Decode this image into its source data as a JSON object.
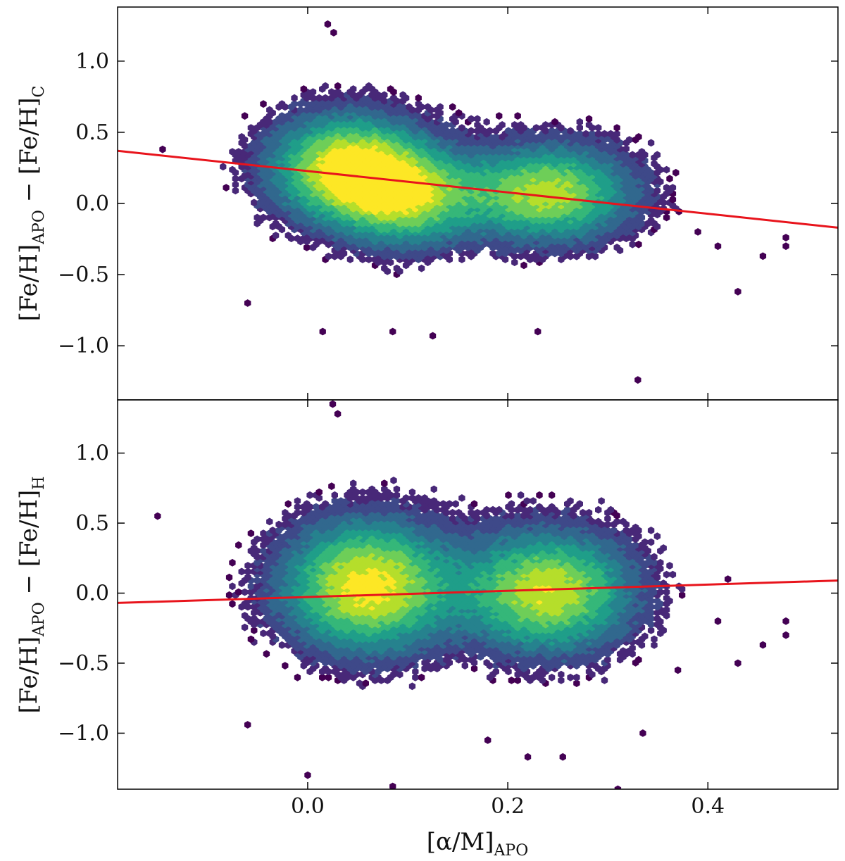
{
  "chart_data": [
    {
      "type": "hexbin",
      "panel": "top",
      "xlabel_main": "",
      "ylabel": {
        "main": "[Fe/H]",
        "sub1": "APO",
        "minus": " − [Fe/H]",
        "sub2": "C"
      },
      "xlim": [
        -0.19,
        0.53
      ],
      "ylim": [
        -1.38,
        1.38
      ],
      "xticks": [
        0.0,
        0.2,
        0.4
      ],
      "yticks": [
        1.0,
        0.5,
        0.0,
        -0.5,
        -1.0
      ],
      "ytick_labels": [
        "1.0",
        "0.5",
        "0.0",
        "−0.5",
        "−1.0"
      ],
      "colormap": [
        "#440154",
        "#482878",
        "#3e4989",
        "#31688e",
        "#26828e",
        "#1f9e89",
        "#35b779",
        "#6ece58",
        "#b5de2b",
        "#fde725"
      ],
      "density_clusters": [
        {
          "x": 0.04,
          "y": 0.26,
          "sx": 0.05,
          "sy": 0.24,
          "weight": 1.0
        },
        {
          "x": 0.1,
          "y": 0.05,
          "sx": 0.045,
          "sy": 0.22,
          "weight": 0.75
        },
        {
          "x": 0.24,
          "y": 0.08,
          "sx": 0.055,
          "sy": 0.22,
          "weight": 0.85
        }
      ],
      "outliers": [
        {
          "x": -0.145,
          "y": 0.38
        },
        {
          "x": -0.06,
          "y": -0.7
        },
        {
          "x": 0.015,
          "y": -0.9
        },
        {
          "x": 0.085,
          "y": -0.9
        },
        {
          "x": 0.125,
          "y": -0.93
        },
        {
          "x": 0.23,
          "y": -0.9
        },
        {
          "x": 0.33,
          "y": -1.24
        },
        {
          "x": 0.43,
          "y": -0.62
        },
        {
          "x": 0.455,
          "y": -0.37
        },
        {
          "x": 0.478,
          "y": -0.24
        },
        {
          "x": 0.478,
          "y": -0.3
        },
        {
          "x": 0.02,
          "y": 1.26
        },
        {
          "x": 0.026,
          "y": 1.2
        },
        {
          "x": 0.39,
          "y": -0.2
        },
        {
          "x": 0.41,
          "y": -0.3
        }
      ],
      "fit_line": {
        "color": "#e8141c",
        "x": [
          -0.19,
          0.53
        ],
        "y": [
          0.37,
          -0.17
        ]
      }
    },
    {
      "type": "hexbin",
      "panel": "bottom",
      "xlabel": {
        "main": "[α/M]",
        "sub": "APO"
      },
      "ylabel": {
        "main": "[Fe/H]",
        "sub1": "APO",
        "minus": " − [Fe/H]",
        "sub2": "H"
      },
      "xlim": [
        -0.19,
        0.53
      ],
      "ylim": [
        -1.4,
        1.38
      ],
      "xticks": [
        0.0,
        0.2,
        0.4
      ],
      "xtick_labels": [
        "0.0",
        "0.2",
        "0.4"
      ],
      "yticks": [
        1.0,
        0.5,
        0.0,
        -0.5,
        -1.0
      ],
      "ytick_labels": [
        "1.0",
        "0.5",
        "0.0",
        "−0.5",
        "−1.0"
      ],
      "colormap": [
        "#440154",
        "#482878",
        "#3e4989",
        "#31688e",
        "#26828e",
        "#1f9e89",
        "#35b779",
        "#6ece58",
        "#b5de2b",
        "#fde725"
      ],
      "density_clusters": [
        {
          "x": 0.06,
          "y": 0.06,
          "sx": 0.055,
          "sy": 0.3,
          "weight": 1.0
        },
        {
          "x": 0.24,
          "y": 0.02,
          "sx": 0.055,
          "sy": 0.28,
          "weight": 0.9
        }
      ],
      "outliers": [
        {
          "x": -0.15,
          "y": 0.55
        },
        {
          "x": -0.06,
          "y": -0.94
        },
        {
          "x": 0.025,
          "y": 1.35
        },
        {
          "x": 0.03,
          "y": 1.28
        },
        {
          "x": 0.18,
          "y": -1.05
        },
        {
          "x": 0.22,
          "y": -1.17
        },
        {
          "x": 0.255,
          "y": -1.17
        },
        {
          "x": 0.335,
          "y": -1.0
        },
        {
          "x": 0.37,
          "y": -0.55
        },
        {
          "x": 0.43,
          "y": -0.5
        },
        {
          "x": 0.455,
          "y": -0.37
        },
        {
          "x": 0.478,
          "y": -0.2
        },
        {
          "x": 0.478,
          "y": -0.3
        },
        {
          "x": 0.41,
          "y": -0.2
        },
        {
          "x": 0.42,
          "y": 0.1
        },
        {
          "x": 0.31,
          "y": -1.4
        },
        {
          "x": 0.085,
          "y": -1.38
        },
        {
          "x": 0.0,
          "y": -1.3
        }
      ],
      "fit_line": {
        "color": "#e8141c",
        "x": [
          -0.19,
          0.53
        ],
        "y": [
          -0.07,
          0.09
        ]
      }
    }
  ]
}
